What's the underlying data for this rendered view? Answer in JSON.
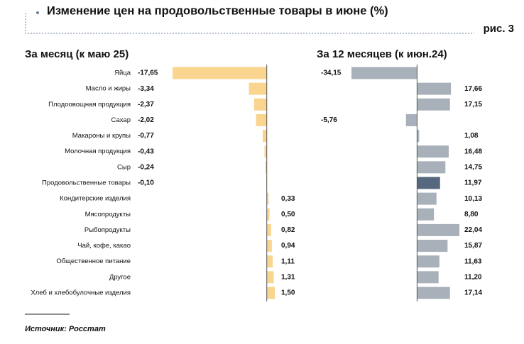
{
  "title": "Изменение цен на продовольственные товары в июне (%)",
  "figure_label": "рис. 3",
  "source": "Источник: Росстат",
  "chart_data": [
    {
      "type": "hbar",
      "title": "За месяц (к маю 25)",
      "categories": [
        "Яйца",
        "Масло и жиры",
        "Плодоовощная продукция",
        "Сахар",
        "Макароны и крупы",
        "Молочная продукция",
        "Сыр",
        "Продовольственные товары",
        "Кондитерские изделия",
        "Мясопродукты",
        "Рыбопродукты",
        "Чай, кофе, какао",
        "Общественное питание",
        "Другое",
        "Хлеб и хлебобулочные изделия"
      ],
      "values": [
        -17.65,
        -3.34,
        -2.37,
        -2.02,
        -0.77,
        -0.43,
        -0.24,
        -0.1,
        0.33,
        0.5,
        0.82,
        0.94,
        1.11,
        1.31,
        1.5
      ],
      "value_labels": [
        "-17,65",
        "-3,34",
        "-2,37",
        "-2,02",
        "-0,77",
        "-0,43",
        "-0,24",
        "-0,10",
        "0,33",
        "0,50",
        "0,82",
        "0,94",
        "1,11",
        "1,31",
        "1,50"
      ],
      "color": "#f9d58f"
    },
    {
      "type": "hbar",
      "title": "За 12 месяцев (к июн.24)",
      "values": [
        -34.15,
        17.66,
        17.15,
        -5.76,
        1.08,
        16.48,
        14.75,
        11.97,
        10.13,
        8.8,
        22.04,
        15.87,
        11.63,
        11.2,
        17.14
      ],
      "value_labels": [
        "-34,15",
        "17,66",
        "17,15",
        "-5,76",
        "1,08",
        "16,48",
        "14,75",
        "11,97",
        "10,13",
        "8,80",
        "22,04",
        "15,87",
        "11,63",
        "11,20",
        "17,14"
      ],
      "colors": [
        "#a8b1ba",
        "#a8b1ba",
        "#a8b1ba",
        "#a8b1ba",
        "#a8b1ba",
        "#a8b1ba",
        "#a8b1ba",
        "#56687e",
        "#a8b1ba",
        "#a8b1ba",
        "#a8b1ba",
        "#a8b1ba",
        "#a8b1ba",
        "#a8b1ba",
        "#a8b1ba"
      ]
    }
  ]
}
